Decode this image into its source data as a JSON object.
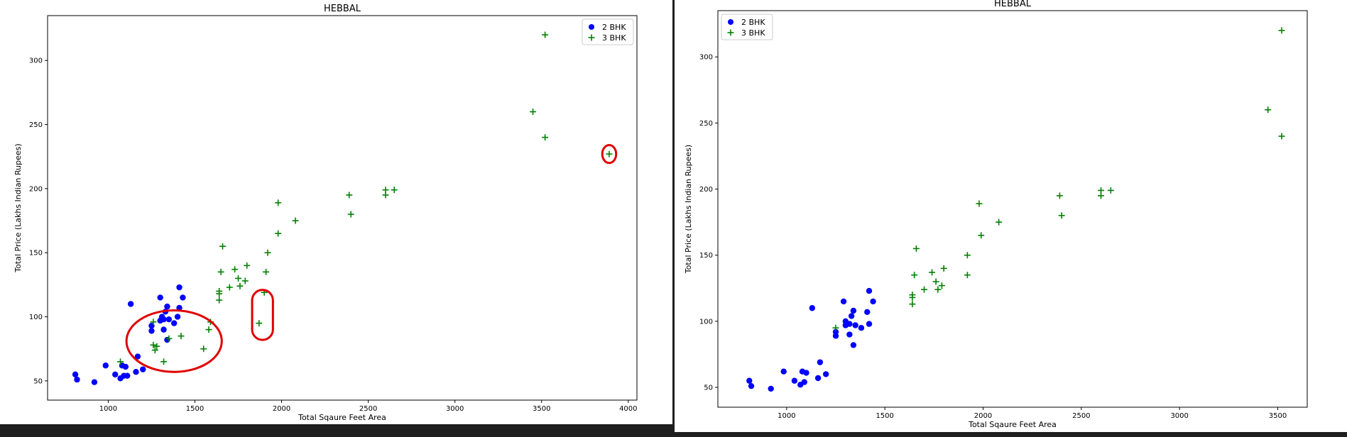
{
  "chart_data": [
    {
      "type": "scatter",
      "title": "HEBBAL",
      "xlabel": "Total Sqaure Feet Area",
      "ylabel": "Total Price (Lakhs Indian Rupees)",
      "xlim": [
        650,
        4050
      ],
      "ylim": [
        35,
        335
      ],
      "xticks": [
        1000,
        1500,
        2000,
        2500,
        3000,
        3500,
        4000
      ],
      "yticks": [
        50,
        100,
        150,
        200,
        250,
        300
      ],
      "legend_position": "upper right",
      "series": [
        {
          "name": "2 BHK",
          "marker": "circle",
          "color": "#0000ff",
          "x": [
            810,
            820,
            920,
            985,
            1040,
            1070,
            1080,
            1090,
            1100,
            1110,
            1130,
            1160,
            1170,
            1200,
            1250,
            1250,
            1300,
            1300,
            1310,
            1320,
            1320,
            1330,
            1340,
            1340,
            1350,
            1380,
            1400,
            1410,
            1410,
            1430
          ],
          "y": [
            55,
            51,
            49,
            62,
            55,
            52,
            62,
            54,
            61,
            54,
            110,
            57,
            69,
            59,
            89,
            93,
            115,
            97,
            100,
            90,
            98,
            104,
            82,
            108,
            98,
            95,
            100,
            107,
            123,
            115
          ]
        },
        {
          "name": "3 BHK",
          "marker": "plus",
          "color": "#008000",
          "x": [
            1070,
            1260,
            1260,
            1270,
            1280,
            1320,
            1350,
            1420,
            1550,
            1580,
            1590,
            1640,
            1640,
            1640,
            1650,
            1660,
            1700,
            1730,
            1750,
            1760,
            1790,
            1800,
            1870,
            1900,
            1910,
            1920,
            1980,
            1980,
            2080,
            2390,
            2400,
            2600,
            2600,
            2650,
            3450,
            3520,
            3520,
            3890
          ],
          "y": [
            65,
            96,
            78,
            74,
            77,
            65,
            83,
            85,
            75,
            90,
            96,
            113,
            120,
            118,
            135,
            155,
            123,
            137,
            130,
            124,
            128,
            140,
            95,
            119,
            135,
            150,
            189,
            165,
            175,
            195,
            180,
            195,
            199,
            199,
            260,
            240,
            320,
            227
          ]
        }
      ],
      "annotations": [
        {
          "shape": "ellipse",
          "color": "#e00000",
          "cx": 1380,
          "cy": 81,
          "rx": 275,
          "ry": 24
        },
        {
          "shape": "rounded-rect",
          "color": "#e00000",
          "x0": 1830,
          "x1": 1950,
          "y0": 82,
          "y1": 121
        },
        {
          "shape": "circle",
          "color": "#e00000",
          "cx": 3890,
          "cy": 227,
          "rx": 40,
          "ry": 7
        }
      ]
    },
    {
      "type": "scatter",
      "title": "HEBBAL",
      "xlabel": "Total Sqaure Feet Area",
      "ylabel": "Total Price (Lakhs Indian Rupees)",
      "xlim": [
        650,
        3650
      ],
      "ylim": [
        35,
        335
      ],
      "xticks": [
        1000,
        1500,
        2000,
        2500,
        3000,
        3500
      ],
      "yticks": [
        50,
        100,
        150,
        200,
        250,
        300
      ],
      "legend_position": "upper left",
      "series": [
        {
          "name": "2 BHK",
          "marker": "circle",
          "color": "#0000ff",
          "x": [
            810,
            820,
            920,
            985,
            1040,
            1070,
            1080,
            1090,
            1100,
            1130,
            1160,
            1170,
            1200,
            1250,
            1250,
            1290,
            1300,
            1300,
            1320,
            1320,
            1330,
            1340,
            1340,
            1350,
            1380,
            1410,
            1420,
            1420,
            1440
          ],
          "y": [
            55,
            51,
            49,
            62,
            55,
            52,
            62,
            54,
            61,
            110,
            57,
            69,
            60,
            89,
            92,
            115,
            97,
            100,
            90,
            98,
            104,
            82,
            108,
            97,
            95,
            107,
            123,
            98,
            115
          ]
        },
        {
          "name": "3 BHK",
          "marker": "plus",
          "color": "#008000",
          "x": [
            1250,
            1640,
            1640,
            1640,
            1650,
            1660,
            1700,
            1740,
            1760,
            1770,
            1790,
            1800,
            1920,
            1920,
            1980,
            1990,
            2080,
            2390,
            2400,
            2600,
            2600,
            2650,
            3450,
            3520,
            3520
          ],
          "y": [
            95,
            113,
            120,
            118,
            135,
            155,
            124,
            137,
            130,
            124,
            127,
            140,
            135,
            150,
            189,
            165,
            175,
            195,
            180,
            195,
            199,
            199,
            260,
            240,
            320
          ]
        }
      ]
    }
  ]
}
